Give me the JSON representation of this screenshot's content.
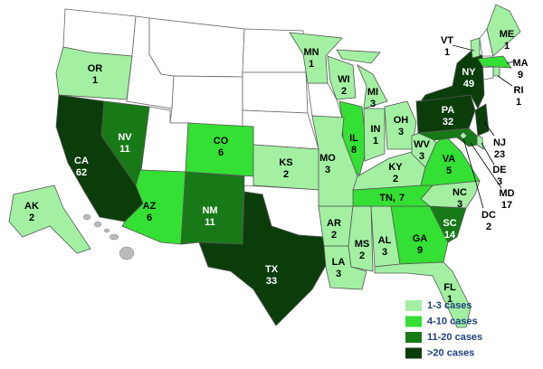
{
  "states": [
    {
      "abbr": "OR",
      "cases": 1,
      "color": "#a3f0a3"
    },
    {
      "abbr": "CA",
      "cases": 62,
      "color": "#0b3d0b"
    },
    {
      "abbr": "NV",
      "cases": 11,
      "color": "#177a17"
    },
    {
      "abbr": "AZ",
      "cases": 6,
      "color": "#33e033"
    },
    {
      "abbr": "CO",
      "cases": 6,
      "color": "#33e033"
    },
    {
      "abbr": "NM",
      "cases": 11,
      "color": "#177a17"
    },
    {
      "abbr": "TX",
      "cases": 33,
      "color": "#0b3d0b"
    },
    {
      "abbr": "KS",
      "cases": 2,
      "color": "#a3f0a3"
    },
    {
      "abbr": "MN",
      "cases": 1,
      "color": "#a3f0a3"
    },
    {
      "abbr": "WI",
      "cases": 2,
      "color": "#a3f0a3"
    },
    {
      "abbr": "MI",
      "cases": 3,
      "color": "#a3f0a3"
    },
    {
      "abbr": "IL",
      "cases": 8,
      "color": "#33e033"
    },
    {
      "abbr": "IN",
      "cases": 1,
      "color": "#a3f0a3"
    },
    {
      "abbr": "OH",
      "cases": 3,
      "color": "#a3f0a3"
    },
    {
      "abbr": "MO",
      "cases": 3,
      "color": "#a3f0a3"
    },
    {
      "abbr": "AR",
      "cases": 2,
      "color": "#a3f0a3"
    },
    {
      "abbr": "LA",
      "cases": 3,
      "color": "#a3f0a3"
    },
    {
      "abbr": "MS",
      "cases": 2,
      "color": "#a3f0a3"
    },
    {
      "abbr": "AL",
      "cases": 3,
      "color": "#a3f0a3"
    },
    {
      "abbr": "GA",
      "cases": 9,
      "color": "#33e033"
    },
    {
      "abbr": "FL",
      "cases": 1,
      "color": "#a3f0a3"
    },
    {
      "abbr": "SC",
      "cases": 14,
      "color": "#177a17"
    },
    {
      "abbr": "NC",
      "cases": 3,
      "color": "#a3f0a3"
    },
    {
      "abbr": "TN,",
      "cases": 7,
      "color": "#33e033"
    },
    {
      "abbr": "KY",
      "cases": 2,
      "color": "#a3f0a3"
    },
    {
      "abbr": "WV",
      "cases": 3,
      "color": "#a3f0a3"
    },
    {
      "abbr": "VA",
      "cases": 5,
      "color": "#33e033"
    },
    {
      "abbr": "PA",
      "cases": 32,
      "color": "#0b3d0b"
    },
    {
      "abbr": "NY",
      "cases": 49,
      "color": "#0b3d0b"
    },
    {
      "abbr": "NJ",
      "cases": 23,
      "color": "#0b3d0b"
    },
    {
      "abbr": "DE",
      "cases": 3,
      "color": "#a3f0a3"
    },
    {
      "abbr": "MD",
      "cases": 17,
      "color": "#177a17"
    },
    {
      "abbr": "DC",
      "cases": 2,
      "color": "#a3f0a3"
    },
    {
      "abbr": "MA",
      "cases": 9,
      "color": "#33e033"
    },
    {
      "abbr": "RI",
      "cases": 1,
      "color": "#a3f0a3"
    },
    {
      "abbr": "VT",
      "cases": 1,
      "color": "#a3f0a3"
    },
    {
      "abbr": "ME",
      "cases": 1,
      "color": "#a3f0a3"
    },
    {
      "abbr": "AK",
      "cases": 2,
      "color": "#a3f0a3"
    }
  ],
  "legend": [
    {
      "label": "1-3 cases",
      "color": "#a3f0a3"
    },
    {
      "label": "4-10 cases",
      "color": "#33e033"
    },
    {
      "label": "11-20 cases",
      "color": "#177a17"
    },
    {
      "label": ">20 cases",
      "color": "#0b3d0b"
    }
  ]
}
